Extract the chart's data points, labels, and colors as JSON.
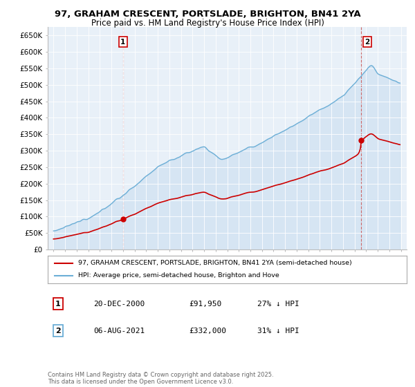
{
  "title_line1": "97, GRAHAM CRESCENT, PORTSLADE, BRIGHTON, BN41 2YA",
  "title_line2": "Price paid vs. HM Land Registry's House Price Index (HPI)",
  "ylabel_ticks": [
    "£0",
    "£50K",
    "£100K",
    "£150K",
    "£200K",
    "£250K",
    "£300K",
    "£350K",
    "£400K",
    "£450K",
    "£500K",
    "£550K",
    "£600K",
    "£650K"
  ],
  "ytick_vals": [
    0,
    50000,
    100000,
    150000,
    200000,
    250000,
    300000,
    350000,
    400000,
    450000,
    500000,
    550000,
    600000,
    650000
  ],
  "hpi_color": "#6baed6",
  "hpi_fill_color": "#c6dbef",
  "price_color": "#cc0000",
  "vline_color": "#cc6666",
  "marker1_year": 2001.0,
  "marker1_price": 91950,
  "marker2_year": 2021.6,
  "marker2_price": 332000,
  "legend_label1": "97, GRAHAM CRESCENT, PORTSLADE, BRIGHTON, BN41 2YA (semi-detached house)",
  "legend_label2": "HPI: Average price, semi-detached house, Brighton and Hove",
  "note1_label": "1",
  "note1_date": "20-DEC-2000",
  "note1_price": "£91,950",
  "note1_hpi": "27% ↓ HPI",
  "note2_label": "2",
  "note2_date": "06-AUG-2021",
  "note2_price": "£332,000",
  "note2_hpi": "31% ↓ HPI",
  "footer": "Contains HM Land Registry data © Crown copyright and database right 2025.\nThis data is licensed under the Open Government Licence v3.0.",
  "background_color": "#ffffff",
  "plot_bg_color": "#e8f0f8",
  "grid_color": "#ffffff"
}
